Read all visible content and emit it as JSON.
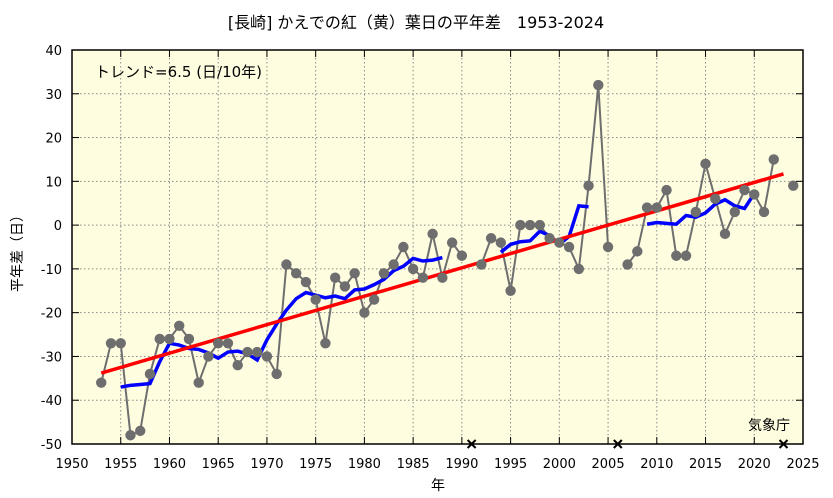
{
  "chart_data": {
    "type": "line",
    "title": "[長崎] かえでの紅（黄）葉日の平年差　1953-2024",
    "xlabel": "年",
    "ylabel": "平年差（日）",
    "xlim": [
      1950,
      2025
    ],
    "ylim": [
      -50,
      40
    ],
    "xticks": [
      1950,
      1955,
      1960,
      1965,
      1970,
      1975,
      1980,
      1985,
      1990,
      1995,
      2000,
      2005,
      2010,
      2015,
      2020,
      2025
    ],
    "yticks": [
      -50,
      -40,
      -30,
      -20,
      -10,
      0,
      10,
      20,
      30,
      40
    ],
    "grid": true,
    "annotation": "トレンド=6.5 (日/10年)",
    "credit": "気象庁",
    "colors": {
      "annual": "#6e6e6e",
      "moving_average": "#0000ff",
      "trend": "#ff0000",
      "plot_background": "#fffde0"
    },
    "missing_years": [
      1991,
      2006,
      2023
    ],
    "annual": {
      "x": [
        1953,
        1954,
        1955,
        1956,
        1957,
        1958,
        1959,
        1960,
        1961,
        1962,
        1963,
        1964,
        1965,
        1966,
        1967,
        1968,
        1969,
        1970,
        1971,
        1972,
        1973,
        1974,
        1975,
        1976,
        1977,
        1978,
        1979,
        1980,
        1981,
        1982,
        1983,
        1984,
        1985,
        1986,
        1987,
        1988,
        1989,
        1990,
        1991,
        1992,
        1993,
        1994,
        1995,
        1996,
        1997,
        1998,
        1999,
        2000,
        2001,
        2002,
        2003,
        2004,
        2005,
        2006,
        2007,
        2008,
        2009,
        2010,
        2011,
        2012,
        2013,
        2014,
        2015,
        2016,
        2017,
        2018,
        2019,
        2020,
        2021,
        2022,
        2023,
        2024
      ],
      "y": [
        -36,
        -27,
        -27,
        -48,
        -47,
        -34,
        -26,
        -26,
        -23,
        -26,
        -36,
        -30,
        -27,
        -27,
        -32,
        -29,
        -29,
        -30,
        -34,
        -9,
        -11,
        -13,
        -17,
        -27,
        -12,
        -14,
        -11,
        -20,
        -17,
        -11,
        -9,
        -5,
        -10,
        -12,
        -2,
        -12,
        -4,
        -7,
        null,
        -9,
        -3,
        -4,
        -15,
        0,
        0,
        0,
        -3,
        -4,
        -5,
        -10,
        9,
        32,
        -5,
        null,
        -9,
        -6,
        4,
        4,
        8,
        -7,
        -7,
        3,
        14,
        6,
        -2,
        3,
        8,
        7,
        3,
        15,
        null,
        9
      ]
    },
    "moving_average_window": 5,
    "trend": {
      "slope_per_decade": 6.5,
      "x": [
        1953,
        2023
      ],
      "y": [
        -33.8,
        11.7
      ]
    }
  }
}
